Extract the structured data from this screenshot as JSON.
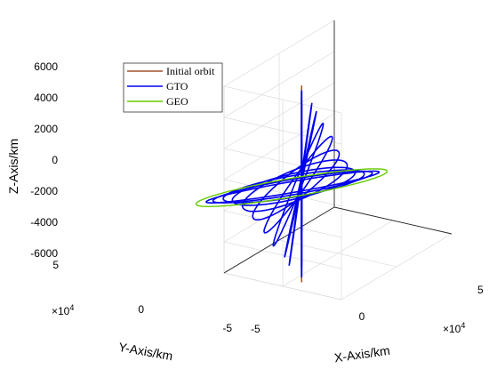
{
  "chart_data": {
    "type": "line3d",
    "title": "",
    "xlabel": "X-Axis/km",
    "ylabel": "Y-Axis/km",
    "zlabel": "Z-Axis/km",
    "x_ticks": [
      "-5",
      "0",
      "5"
    ],
    "y_ticks": [
      "-5",
      "0",
      "5"
    ],
    "z_ticks": [
      "-6000",
      "-4000",
      "-2000",
      "0",
      "2000",
      "4000",
      "6000"
    ],
    "x_exponent": {
      "base": "×10",
      "power": "4"
    },
    "y_exponent": {
      "base": "×10",
      "power": "4"
    },
    "xlim": [
      -5,
      5
    ],
    "ylim": [
      -5,
      5
    ],
    "zlim": [
      -6000,
      6000
    ],
    "units_note": "x and y in units of 10^4 km, z in km",
    "grid": true,
    "legend_position": "top-left",
    "series": [
      {
        "name": "Initial orbit",
        "color": "#a0522d",
        "kind": "ellipse",
        "orbits": [
          {
            "center": [
              0.2,
              -3.5,
              0
            ],
            "u": [
              0,
              0,
              6300
            ],
            "v": [
              0.3,
              -0.3,
              0
            ]
          }
        ]
      },
      {
        "name": "GTO",
        "color": "#0000ee",
        "kind": "ellipse",
        "orbits": [
          {
            "center": [
              0.2,
              -3.5,
              0
            ],
            "u": [
              0,
              0,
              6000
            ],
            "v": [
              0.3,
              -0.3,
              0
            ]
          },
          {
            "center": [
              0.2,
              -3.5,
              0
            ],
            "u": [
              0,
              0,
              5900
            ],
            "v": [
              0.3,
              -0.3,
              0
            ]
          },
          {
            "center": [
              0.2,
              -3.6,
              0
            ],
            "u": [
              0.5,
              0.5,
              5100
            ],
            "v": [
              0.7,
              -0.7,
              500
            ]
          },
          {
            "center": [
              0.2,
              -3.6,
              0
            ],
            "u": [
              0.7,
              0.7,
              4500
            ],
            "v": [
              0.9,
              -0.9,
              900
            ]
          },
          {
            "center": [
              0.1,
              -3.7,
              0
            ],
            "u": [
              1.1,
              1.1,
              3600
            ],
            "v": [
              1.0,
              -1.0,
              1300
            ]
          },
          {
            "center": [
              0.1,
              -3.7,
              0
            ],
            "u": [
              1.5,
              1.5,
              2600
            ],
            "v": [
              1.1,
              -1.1,
              1500
            ]
          },
          {
            "center": [
              0.0,
              -3.8,
              0
            ],
            "u": [
              1.9,
              1.9,
              1500
            ],
            "v": [
              1.1,
              -1.1,
              1700
            ]
          },
          {
            "center": [
              0.0,
              -3.9,
              0
            ],
            "u": [
              2.3,
              2.3,
              700
            ],
            "v": [
              1.1,
              -1.1,
              1700
            ]
          },
          {
            "center": [
              0.0,
              -4.0,
              0
            ],
            "u": [
              2.7,
              2.7,
              200
            ],
            "v": [
              1.1,
              -1.1,
              1500
            ]
          },
          {
            "center": [
              0.0,
              -4.0,
              0
            ],
            "u": [
              3.1,
              3.1,
              0
            ],
            "v": [
              1.0,
              -1.0,
              1300
            ]
          },
          {
            "center": [
              0.0,
              -4.1,
              0
            ],
            "u": [
              3.5,
              3.5,
              0
            ],
            "v": [
              1.0,
              -1.0,
              1100
            ]
          },
          {
            "center": [
              0.0,
              -4.1,
              0
            ],
            "u": [
              3.8,
              3.8,
              0
            ],
            "v": [
              0.9,
              -0.9,
              900
            ]
          }
        ]
      },
      {
        "name": "GEO",
        "color": "#66cc00",
        "kind": "ellipse",
        "orbits": [
          {
            "center": [
              0.0,
              -4.2,
              0
            ],
            "u": [
              4.2,
              4.2,
              0
            ],
            "v": [
              1.0,
              -1.0,
              0
            ]
          }
        ]
      }
    ]
  }
}
